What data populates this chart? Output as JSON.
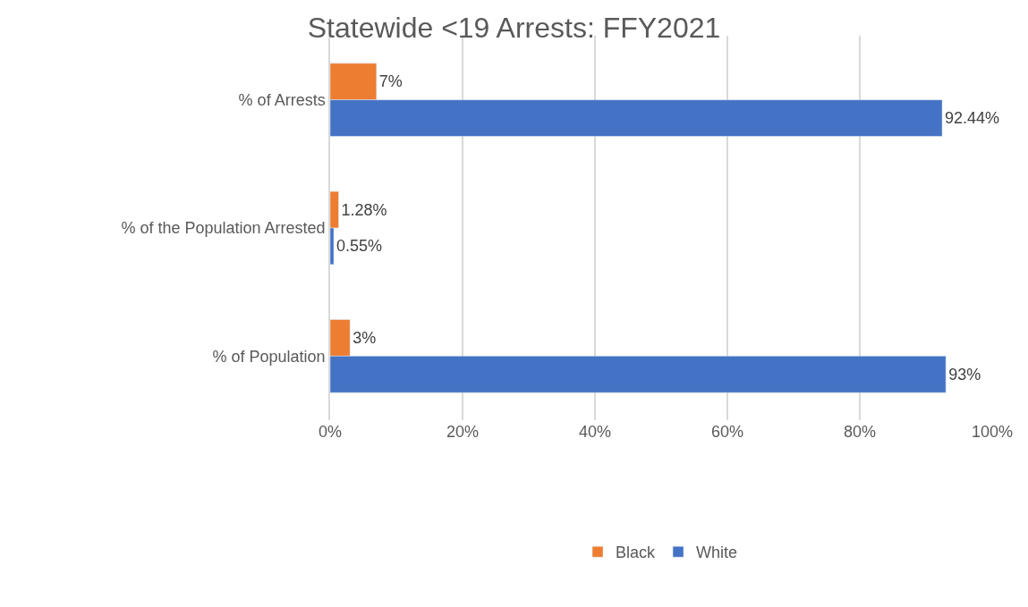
{
  "chart_data": {
    "type": "bar",
    "orientation": "horizontal",
    "title": "Statewide <19 Arrests: FFY2021",
    "categories": [
      "% of Arrests",
      "% of the Population Arrested",
      "% of Population"
    ],
    "series": [
      {
        "name": "Black",
        "color": "#ed7d31",
        "values": [
          7,
          1.28,
          3
        ],
        "value_labels": [
          "7%",
          "1.28%",
          "3%"
        ]
      },
      {
        "name": "White",
        "color": "#4472c4",
        "values": [
          92.44,
          0.55,
          93
        ],
        "value_labels": [
          "92.44%",
          "0.55%",
          "93%"
        ]
      }
    ],
    "xlim": [
      0,
      100
    ],
    "xticks": [
      {
        "value": 0,
        "label": "0%"
      },
      {
        "value": 20,
        "label": "20%"
      },
      {
        "value": 40,
        "label": "40%"
      },
      {
        "value": 60,
        "label": "60%"
      },
      {
        "value": 80,
        "label": "80%"
      },
      {
        "value": 100,
        "label": "100%"
      }
    ],
    "grid": "x",
    "legend": "bottom"
  }
}
